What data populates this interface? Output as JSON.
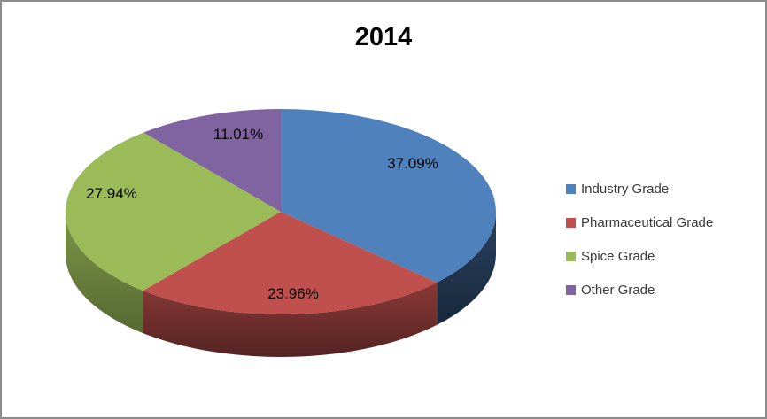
{
  "window": {
    "background": "#FFFFFF",
    "border_color": "#8C8C8C"
  },
  "chart_data": {
    "type": "pie",
    "effect": "3d",
    "title": "2014",
    "categories": [
      "Industry Grade",
      "Pharmaceutical Grade",
      "Spice Grade",
      "Other Grade"
    ],
    "values": [
      37.09,
      23.96,
      27.94,
      11.01
    ],
    "labels": [
      "37.09%",
      "23.96%",
      "27.94%",
      "11.01%"
    ],
    "colors": [
      "#4F81BD",
      "#C0504D",
      "#9BBB59",
      "#8064A2"
    ],
    "start_angle_deg": 0,
    "direction": "clockwise",
    "legend_position": "right",
    "label_color": "#000000",
    "title_color": "#000000"
  }
}
